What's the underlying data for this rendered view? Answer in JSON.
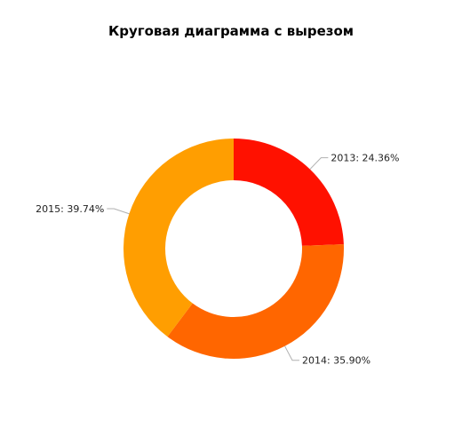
{
  "chart_data": {
    "type": "pie",
    "variant": "donut",
    "title": "Круговая диаграмма с вырезом",
    "slices": [
      {
        "label": "2013",
        "value": 24.36,
        "text": "2013: 24.36%",
        "color": "#ff1100"
      },
      {
        "label": "2014",
        "value": 35.9,
        "text": "2014: 35.90%",
        "color": "#ff6600"
      },
      {
        "label": "2015",
        "value": 39.74,
        "text": "2015: 39.74%",
        "color": "#ff9e01"
      }
    ]
  }
}
